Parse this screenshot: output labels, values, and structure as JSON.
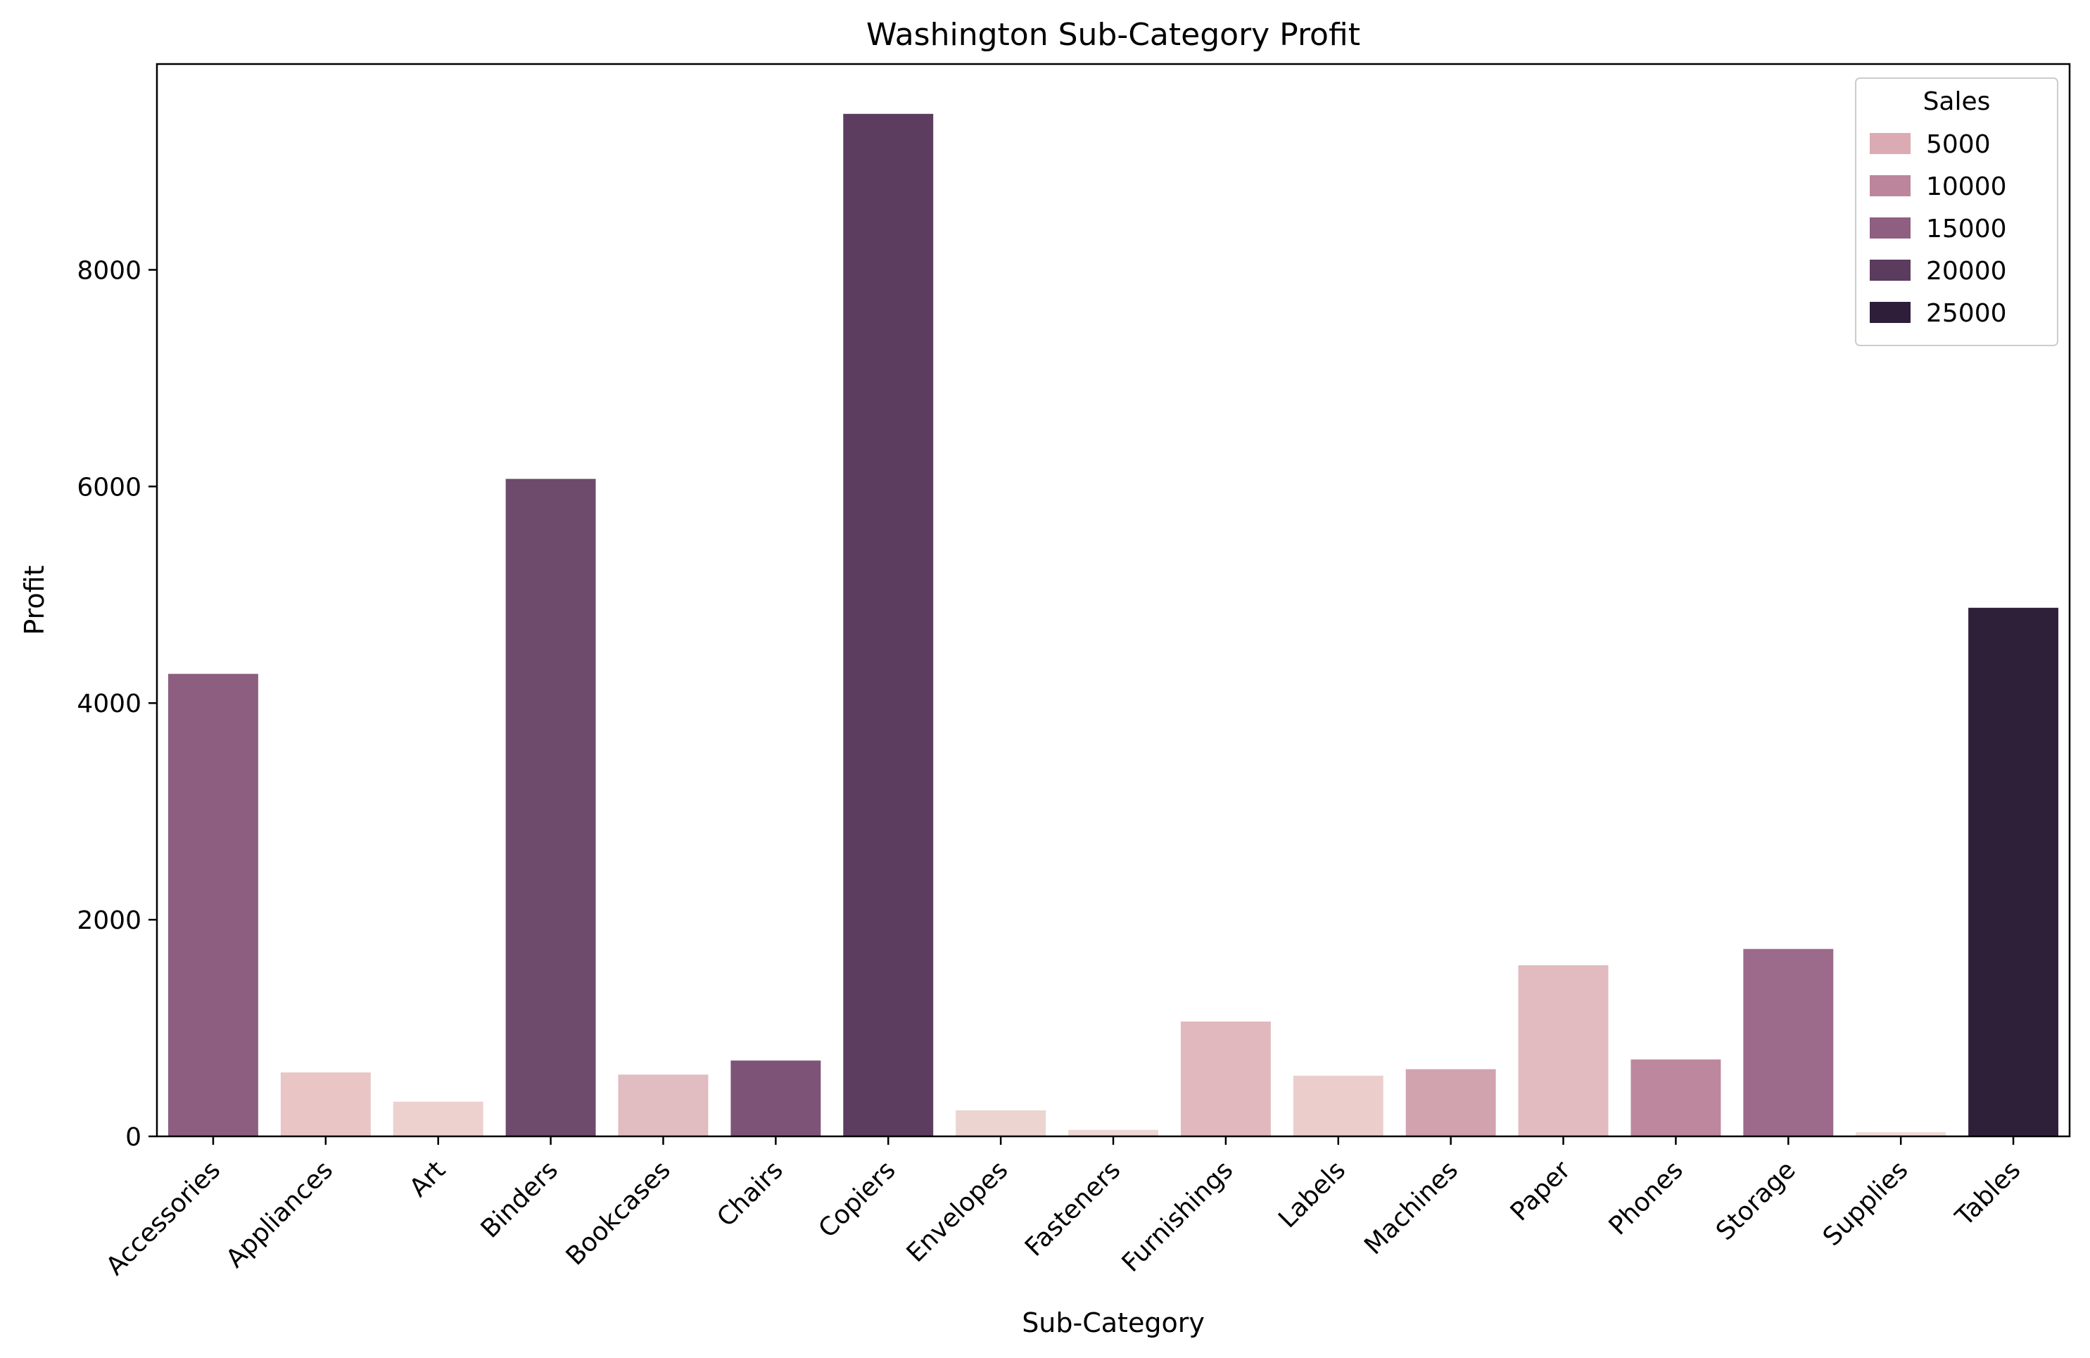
{
  "chart_data": {
    "type": "bar",
    "title": "Washington Sub-Category Profit",
    "xlabel": "Sub-Category",
    "ylabel": "Profit",
    "ylim": [
      0,
      9900
    ],
    "yticks": [
      0,
      2000,
      4000,
      6000,
      8000
    ],
    "grid": false,
    "categories": [
      "Accessories",
      "Appliances",
      "Art",
      "Binders",
      "Bookcases",
      "Chairs",
      "Copiers",
      "Envelopes",
      "Fasteners",
      "Furnishings",
      "Labels",
      "Machines",
      "Paper",
      "Phones",
      "Storage",
      "Supplies",
      "Tables"
    ],
    "values": [
      4270,
      590,
      320,
      6070,
      570,
      700,
      9440,
      240,
      60,
      1060,
      560,
      620,
      1580,
      710,
      1730,
      40,
      4880
    ],
    "hue_name": "Sales",
    "colors": [
      "#8e5e80",
      "#e9c5c5",
      "#ecd1cf",
      "#6e4a6d",
      "#e1bcc0",
      "#7d5478",
      "#5c3d60",
      "#ecd4d1",
      "#eed8d5",
      "#e0b8bd",
      "#ebcecb",
      "#d1a3ae",
      "#e1bbbf",
      "#bd879d",
      "#9c6a8a",
      "#efdcd9",
      "#2f2039"
    ],
    "legend": {
      "title": "Sales",
      "position": "top-right",
      "entries": [
        {
          "label": "5000",
          "color": "#dcaab2"
        },
        {
          "label": "10000",
          "color": "#bc859c"
        },
        {
          "label": "15000",
          "color": "#8f5f81"
        },
        {
          "label": "20000",
          "color": "#5b3b5e"
        },
        {
          "label": "25000",
          "color": "#2e1e3a"
        }
      ]
    }
  }
}
